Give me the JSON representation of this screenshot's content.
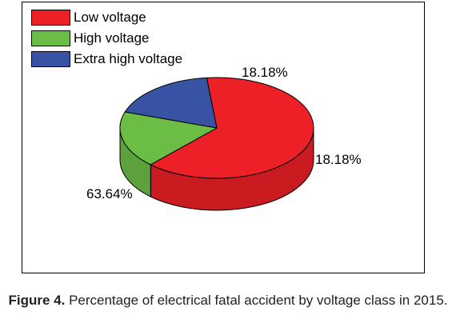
{
  "chart_data": {
    "type": "pie",
    "style": "3d",
    "categories": [
      "Low voltage",
      "High voltage",
      "Extra high voltage"
    ],
    "values": [
      63.64,
      18.18,
      18.18
    ],
    "data_labels": [
      "63.64%",
      "18.18%",
      "18.18%"
    ],
    "colors": [
      "#ee2027",
      "#6cbd45",
      "#3953a4"
    ],
    "legend_position": "top-left"
  },
  "caption": {
    "prefix": "Figure 4.",
    "text": " Percentage of electrical fatal accident by voltage class in 2015."
  }
}
